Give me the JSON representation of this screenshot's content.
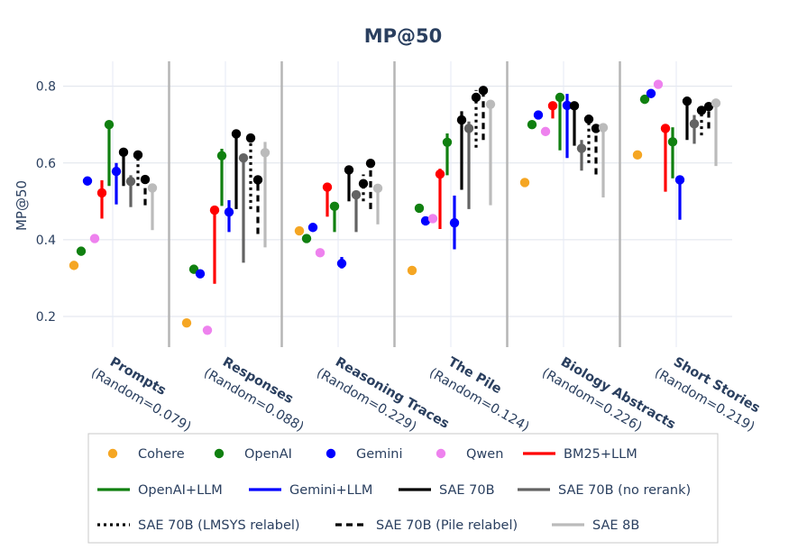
{
  "chart_data": {
    "type": "scatter",
    "title": "MP@50",
    "ylabel": "MP@50",
    "xlabel": "",
    "ylim": [
      0.12,
      0.865
    ],
    "yticks": [
      0.2,
      0.4,
      0.6,
      0.8
    ],
    "ytick_labels": [
      "0.2",
      "0.4",
      "0.6",
      "0.8"
    ],
    "grid": true,
    "legend_position": "bottom",
    "categories": [
      {
        "name": "Prompts",
        "sub": "(Random=0.079)"
      },
      {
        "name": "Responses",
        "sub": "(Random=0.088)"
      },
      {
        "name": "Reasoning Traces",
        "sub": "(Random=0.229)"
      },
      {
        "name": "The Pile",
        "sub": "(Random=0.124)"
      },
      {
        "name": "Biology Abstracts",
        "sub": "(Random=0.226)"
      },
      {
        "name": "Short Stories",
        "sub": "(Random=0.219)"
      }
    ],
    "series": [
      {
        "name": "Cohere",
        "kind": "point",
        "color": "#f5a623",
        "values": [
          0.333,
          0.183,
          0.423,
          0.32,
          0.549,
          0.621
        ]
      },
      {
        "name": "OpenAI",
        "kind": "point",
        "color": "#108010",
        "values": [
          0.37,
          0.323,
          0.403,
          0.482,
          0.7,
          0.766
        ]
      },
      {
        "name": "Gemini",
        "kind": "point",
        "color": "#0000ff",
        "values": [
          0.553,
          0.311,
          0.432,
          0.449,
          0.725,
          0.781
        ]
      },
      {
        "name": "Qwen",
        "kind": "point",
        "color": "#ee82ee",
        "values": [
          0.403,
          0.164,
          0.366,
          0.455,
          0.682,
          0.805
        ]
      },
      {
        "name": "BM25+LLM",
        "kind": "range",
        "dash": "solid",
        "color": "#ff0000",
        "values": [
          0.522,
          0.477,
          0.537,
          0.571,
          0.749,
          0.69
        ],
        "low": [
          0.455,
          0.285,
          0.46,
          0.428,
          0.716,
          0.525
        ],
        "high": [
          0.555,
          0.477,
          0.54,
          0.585,
          0.752,
          0.69
        ]
      },
      {
        "name": "OpenAI+LLM",
        "kind": "range",
        "dash": "solid",
        "color": "#108010",
        "values": [
          0.7,
          0.619,
          0.487,
          0.654,
          0.771,
          0.655
        ],
        "low": [
          0.54,
          0.488,
          0.42,
          0.568,
          0.633,
          0.56
        ],
        "high": [
          0.7,
          0.637,
          0.495,
          0.677,
          0.778,
          0.693
        ]
      },
      {
        "name": "Gemini+LLM",
        "kind": "range",
        "dash": "solid",
        "color": "#0000ff",
        "values": [
          0.578,
          0.472,
          0.338,
          0.444,
          0.75,
          0.556
        ],
        "low": [
          0.492,
          0.42,
          0.325,
          0.375,
          0.613,
          0.452
        ],
        "high": [
          0.6,
          0.503,
          0.355,
          0.515,
          0.78,
          0.556
        ]
      },
      {
        "name": "SAE 70B",
        "kind": "range",
        "dash": "solid",
        "color": "#000000",
        "values": [
          0.628,
          0.676,
          0.582,
          0.712,
          0.749,
          0.761
        ],
        "low": [
          0.54,
          0.48,
          0.5,
          0.53,
          0.645,
          0.66
        ],
        "high": [
          0.628,
          0.676,
          0.582,
          0.735,
          0.749,
          0.761
        ]
      },
      {
        "name": "SAE 70B (no rerank)",
        "kind": "range",
        "dash": "solid",
        "color": "#636363",
        "values": [
          0.552,
          0.613,
          0.517,
          0.69,
          0.638,
          0.702
        ],
        "low": [
          0.485,
          0.34,
          0.42,
          0.48,
          0.58,
          0.65
        ],
        "high": [
          0.568,
          0.613,
          0.517,
          0.708,
          0.66,
          0.725
        ]
      },
      {
        "name": "SAE 70B (LMSYS relabel)",
        "kind": "range",
        "dash": "dot",
        "color": "#000000",
        "values": [
          0.621,
          0.665,
          0.546,
          0.771,
          0.714,
          0.737
        ],
        "low": [
          0.54,
          0.48,
          0.5,
          0.64,
          0.6,
          0.672
        ],
        "high": [
          0.621,
          0.665,
          0.57,
          0.79,
          0.714,
          0.737
        ]
      },
      {
        "name": "SAE 70B (Pile relabel)",
        "kind": "range",
        "dash": "dash",
        "color": "#000000",
        "values": [
          0.557,
          0.556,
          0.599,
          0.789,
          0.69,
          0.747
        ],
        "low": [
          0.49,
          0.415,
          0.48,
          0.66,
          0.57,
          0.69
        ],
        "high": [
          0.557,
          0.556,
          0.599,
          0.789,
          0.69,
          0.747
        ]
      },
      {
        "name": "SAE 8B",
        "kind": "range",
        "dash": "solid",
        "color": "#bbbbbb",
        "values": [
          0.535,
          0.627,
          0.534,
          0.753,
          0.692,
          0.756
        ],
        "low": [
          0.425,
          0.38,
          0.44,
          0.49,
          0.51,
          0.592
        ],
        "high": [
          0.535,
          0.655,
          0.534,
          0.753,
          0.692,
          0.756
        ]
      }
    ]
  }
}
